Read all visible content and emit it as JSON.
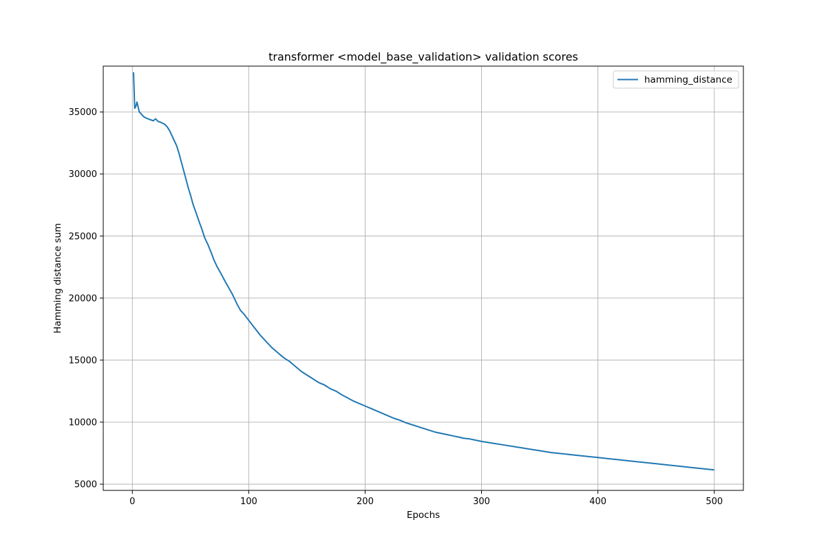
{
  "chart_data": {
    "type": "line",
    "title": "transformer <model_base_validation> validation scores",
    "xlabel": "Epochs",
    "ylabel": "Hamming distance sum",
    "xlim": [
      -25,
      525
    ],
    "ylim": [
      4500,
      38700
    ],
    "xticks": [
      0,
      100,
      200,
      300,
      400,
      500
    ],
    "yticks": [
      5000,
      10000,
      15000,
      20000,
      25000,
      30000,
      35000
    ],
    "grid": true,
    "legend_position": "top-right",
    "series": [
      {
        "name": "hamming_distance",
        "color": "#1f77b4",
        "x": [
          1,
          2,
          3,
          4,
          5,
          6,
          8,
          10,
          12,
          15,
          18,
          20,
          22,
          25,
          28,
          30,
          32,
          34,
          36,
          38,
          40,
          42,
          44,
          46,
          48,
          50,
          52,
          55,
          58,
          60,
          62,
          65,
          68,
          70,
          73,
          76,
          80,
          83,
          86,
          90,
          93,
          96,
          100,
          105,
          110,
          115,
          120,
          125,
          130,
          135,
          140,
          145,
          150,
          155,
          160,
          165,
          170,
          175,
          180,
          185,
          190,
          195,
          200,
          205,
          210,
          215,
          220,
          225,
          230,
          235,
          240,
          245,
          250,
          255,
          260,
          265,
          270,
          275,
          280,
          285,
          290,
          295,
          300,
          310,
          320,
          330,
          340,
          350,
          360,
          370,
          380,
          390,
          400,
          410,
          420,
          430,
          440,
          450,
          460,
          470,
          480,
          490,
          500
        ],
        "y": [
          38200,
          35300,
          35450,
          35800,
          35400,
          35000,
          34800,
          34600,
          34500,
          34400,
          34300,
          34450,
          34250,
          34150,
          34000,
          33800,
          33500,
          33100,
          32700,
          32300,
          31700,
          31000,
          30300,
          29600,
          28900,
          28300,
          27600,
          26800,
          26000,
          25500,
          24900,
          24300,
          23600,
          23100,
          22500,
          22000,
          21300,
          20800,
          20300,
          19500,
          19000,
          18700,
          18200,
          17600,
          17000,
          16500,
          16000,
          15600,
          15200,
          14900,
          14500,
          14100,
          13800,
          13500,
          13200,
          13000,
          12700,
          12500,
          12200,
          11950,
          11700,
          11500,
          11300,
          11100,
          10900,
          10700,
          10500,
          10300,
          10150,
          9950,
          9800,
          9650,
          9500,
          9350,
          9200,
          9100,
          9000,
          8900,
          8800,
          8700,
          8650,
          8550,
          8450,
          8300,
          8150,
          8000,
          7850,
          7700,
          7550,
          7450,
          7350,
          7250,
          7150,
          7050,
          6950,
          6850,
          6750,
          6650,
          6550,
          6450,
          6350,
          6250,
          6150
        ]
      }
    ]
  }
}
